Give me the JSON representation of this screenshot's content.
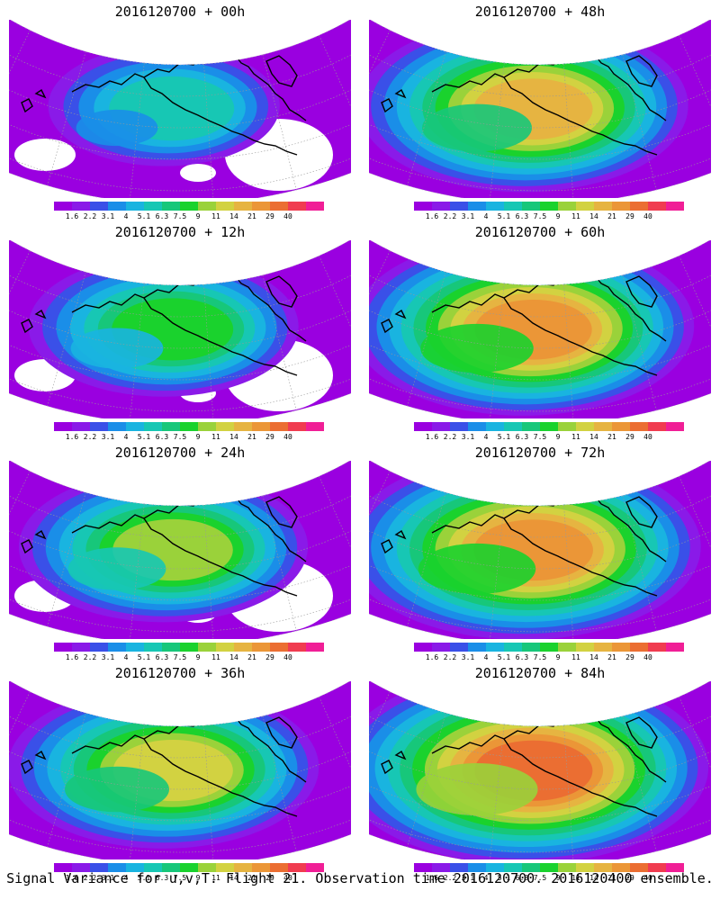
{
  "panels": [
    {
      "title": "2016120700 + 00h",
      "intensity": 0.18
    },
    {
      "title": "2016120700 + 48h",
      "intensity": 0.7
    },
    {
      "title": "2016120700 + 12h",
      "intensity": 0.38
    },
    {
      "title": "2016120700 + 60h",
      "intensity": 0.76
    },
    {
      "title": "2016120700 + 24h",
      "intensity": 0.48
    },
    {
      "title": "2016120700 + 72h",
      "intensity": 0.84
    },
    {
      "title": "2016120700 + 36h",
      "intensity": 0.6
    },
    {
      "title": "2016120700 + 84h",
      "intensity": 0.92
    }
  ],
  "colorbar": {
    "labels": [
      "1.6",
      "2.2",
      "3.1",
      "4",
      "5.1",
      "6.3",
      "7.5",
      "9",
      "11",
      "14",
      "21",
      "29",
      "40"
    ],
    "colors": [
      "#9a00e0",
      "#8a1ae8",
      "#3a50e8",
      "#1a8ee8",
      "#19b4e0",
      "#17c7b4",
      "#17c77a",
      "#1ad22d",
      "#9ad23a",
      "#d2d241",
      "#e6b441",
      "#eb9637",
      "#eb6e32",
      "#f03c50",
      "#f01e96"
    ]
  },
  "footer": "Signal Variance for u,v,T. Flight 21. Observation time 2016120700. 2016120400 ensemble."
}
